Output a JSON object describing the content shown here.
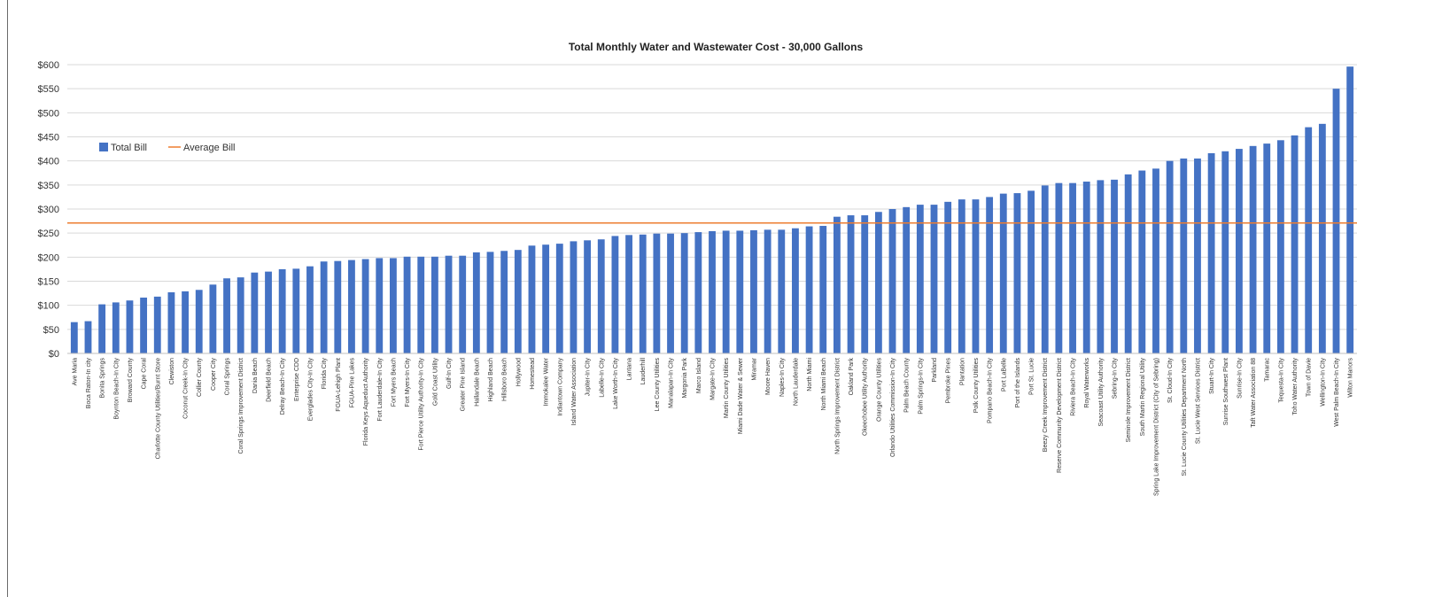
{
  "chart_data": {
    "type": "bar",
    "title": "Total Monthly Water and Wastewater Cost - 30,000 Gallons",
    "xlabel": "",
    "ylabel": "",
    "ylim": [
      0,
      600
    ],
    "y_ticks": [
      "$0",
      "$50",
      "$100",
      "$150",
      "$200",
      "$250",
      "$300",
      "$350",
      "$400",
      "$450",
      "$500",
      "$550",
      "$600"
    ],
    "grid": true,
    "legend_position": "left",
    "colors": {
      "bar": "#4472C4",
      "average": "#ED7D31",
      "grid": "#D9D9D9"
    },
    "categories": [
      "Ave Maria",
      "Boca Raton-In city",
      "Bonita Springs",
      "Boynton Beach-In City",
      "Broward County",
      "Cape Coral",
      "Charlotte County Utilities/Burnt Store",
      "Clewiston",
      "Coconut Creek-In City",
      "Collier County",
      "Cooper City",
      "Coral Springs",
      "Coral Springs Improvement District",
      "Dania Beach",
      "Deerfield Beach",
      "Delray Beach-In City",
      "Enterprise CDD",
      "Everglades City-In City",
      "Florida City",
      "FGUA-Lehigh Plant",
      "FGUA-Pine Lakes",
      "Florida Keys Aqueduct Authority",
      "Fort Lauderdale-In City",
      "Fort Myers Beach",
      "Fort Myers-In City",
      "Fort Pierce Utility Authority-In City",
      "Gold Coast Utility",
      "Gulf-In City",
      "Greater Pine Island",
      "Hallandale Beach",
      "Highland Beach",
      "Hillsboro Beach",
      "Hollywood",
      "Homestead",
      "Immokalee Water",
      "Indiantown Company",
      "Island Water Association",
      "Jupiter-In City",
      "Labelle-In City",
      "Lake Worth-In City",
      "Lantana",
      "Lauderhill",
      "Lee County Utilities",
      "Manalapan-In City",
      "Margonia Park",
      "Marco Island",
      "Margate-In City",
      "Martin County Utilities",
      "Miami Dade Water & Sewer",
      "Miramar",
      "Moore Haven",
      "Naples-In City",
      "North Lauderdale",
      "North Miami",
      "North Miami Beach",
      "North Springs Improvement District",
      "Oakland Park",
      "Okeechobee Utility Authority",
      "Orange County Utilities",
      "Orlando Utilities Commission-In City",
      "Palm Beach County",
      "Palm Springs-In City",
      "Parkland",
      "Pembroke Pines",
      "Plantation",
      "Polk County Utilities",
      "Pompano Beach-In City",
      "Port LaBelle",
      "Port of the Islands",
      "Port St. Lucie",
      "Beezy Creek Improvement District",
      "Reserve Community Development District",
      "Riviera Beach-In City",
      "Royal Waterworks",
      "Seacoast Utility Authority",
      "Sebring-In City",
      "Seminole Improvement District",
      "South Martin Regional Utility",
      "Spring Lake Improvement District (City of Sebring)",
      "St. Cloud-In City",
      "St. Lucie County Utilities Department North",
      "St. Lucie West Services District",
      "Stuart-In City",
      "Sunrise Southwest Plant",
      "Sunrise-In City",
      "Taft Water Association 88",
      "Tamarac",
      "Tequesta-In City",
      "Toho Water Authority",
      "Town of Davie",
      "Wellington-In City",
      "West Palm Beach-In City",
      "Wilton Manors"
    ],
    "series": [
      {
        "name": "Total Bill",
        "type": "bar",
        "values": [
          65,
          67,
          102,
          106,
          110,
          116,
          118,
          127,
          129,
          132,
          143,
          156,
          158,
          168,
          170,
          175,
          176,
          181,
          191,
          192,
          194,
          196,
          198,
          198,
          201,
          201,
          201,
          203,
          203,
          210,
          211,
          213,
          215,
          224,
          226,
          228,
          233,
          235,
          237,
          244,
          246,
          247,
          249,
          249,
          250,
          252,
          254,
          255,
          255,
          256,
          257,
          257,
          260,
          264,
          265,
          284,
          287,
          287,
          294,
          300,
          304,
          309,
          309,
          315,
          320,
          320,
          325,
          332,
          333,
          338,
          349,
          354,
          354,
          357,
          360,
          361,
          372,
          380,
          384,
          400,
          405,
          405,
          416,
          420,
          425,
          431,
          436,
          443,
          453,
          470,
          477,
          550,
          596
        ]
      },
      {
        "name": "Average Bill",
        "type": "line",
        "value": 271
      }
    ]
  }
}
